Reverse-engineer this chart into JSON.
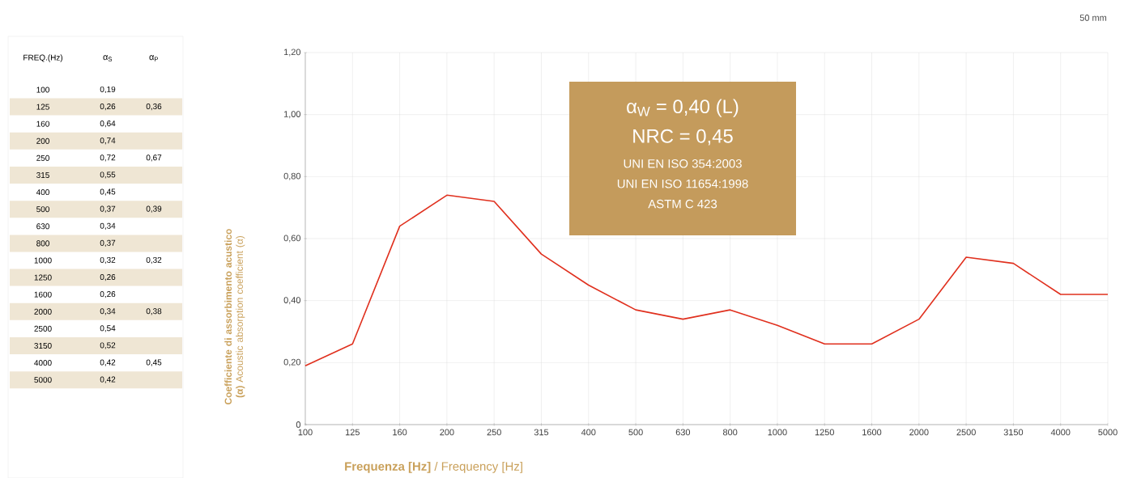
{
  "chart_data": [
    {
      "type": "other",
      "xlabel": "FREQ.(Hz)",
      "categories": [
        "100",
        "125",
        "160",
        "200",
        "250",
        "315",
        "400",
        "500",
        "630",
        "800",
        "1000",
        "1250",
        "1600",
        "2000",
        "2500",
        "3150",
        "4000",
        "5000"
      ],
      "series": [
        {
          "name": "α$_{S}$",
          "values": [
            0.19,
            0.26,
            0.64,
            0.74,
            0.72,
            0.55,
            0.45,
            0.37,
            0.34,
            0.37,
            0.32,
            0.26,
            0.26,
            0.34,
            0.54,
            0.52,
            0.42,
            0.42
          ],
          "value_labels": [
            "0,19",
            "0,26",
            "0,64",
            "0,74",
            "0,72",
            "0,55",
            "0,45",
            "0,37",
            "0,34",
            "0,37",
            "0,32",
            "0,26",
            "0,26",
            "0,34",
            "0,54",
            "0,52",
            "0,42",
            "0,42"
          ]
        },
        {
          "name": "α$_{P}$",
          "values": [
            null,
            0.36,
            null,
            null,
            0.67,
            null,
            null,
            0.39,
            null,
            null,
            0.32,
            null,
            null,
            0.38,
            null,
            null,
            0.45,
            null
          ],
          "value_labels": [
            null,
            "0,36",
            null,
            null,
            "0,67",
            null,
            null,
            "0,39",
            null,
            null,
            "0,32",
            null,
            null,
            "0,38",
            null,
            null,
            "0,45",
            null
          ]
        }
      ]
    },
    {
      "type": "line",
      "xlabel": "**Frequenza [Hz]** / Frequency [Hz]",
      "ylabel": "**Coefficiente di assorbimento acustico (α)** Acoustic absorption coefficient (α)",
      "categories": [
        "100",
        "125",
        "160",
        "200",
        "250",
        "315",
        "400",
        "500",
        "630",
        "800",
        "1000",
        "1250",
        "1600",
        "2000",
        "2500",
        "3150",
        "4000",
        "5000"
      ],
      "series": [
        {
          "color": "#e0301e",
          "values": [
            0.19,
            0.26,
            0.64,
            0.74,
            0.72,
            0.55,
            0.45,
            0.37,
            0.34,
            0.37,
            0.32,
            0.26,
            0.26,
            0.34,
            0.54,
            0.52,
            0.42,
            0.42
          ]
        }
      ],
      "ylim": [
        0,
        1.2
      ],
      "yticks": [
        0,
        {
          "value": 0.2,
          "label": "0,20"
        },
        {
          "value": 0.4,
          "label": "0,40"
        },
        {
          "value": 0.6,
          "label": "0,60"
        },
        {
          "value": 0.8,
          "label": "0,80"
        },
        {
          "value": 1.0,
          "label": "1,00"
        },
        {
          "value": 1.2,
          "label": "1,20"
        }
      ],
      "grid": true,
      "marker": "none",
      "line_style": "solid",
      "annotations": [
        "α$_{W}$ = 0,40 (L)",
        "NRC = 0,45",
        "UNI EN ISO 354:2003",
        "UNI EN ISO 11654:1998",
        "ASTM C 423",
        "50 mm"
      ]
    }
  ]
}
